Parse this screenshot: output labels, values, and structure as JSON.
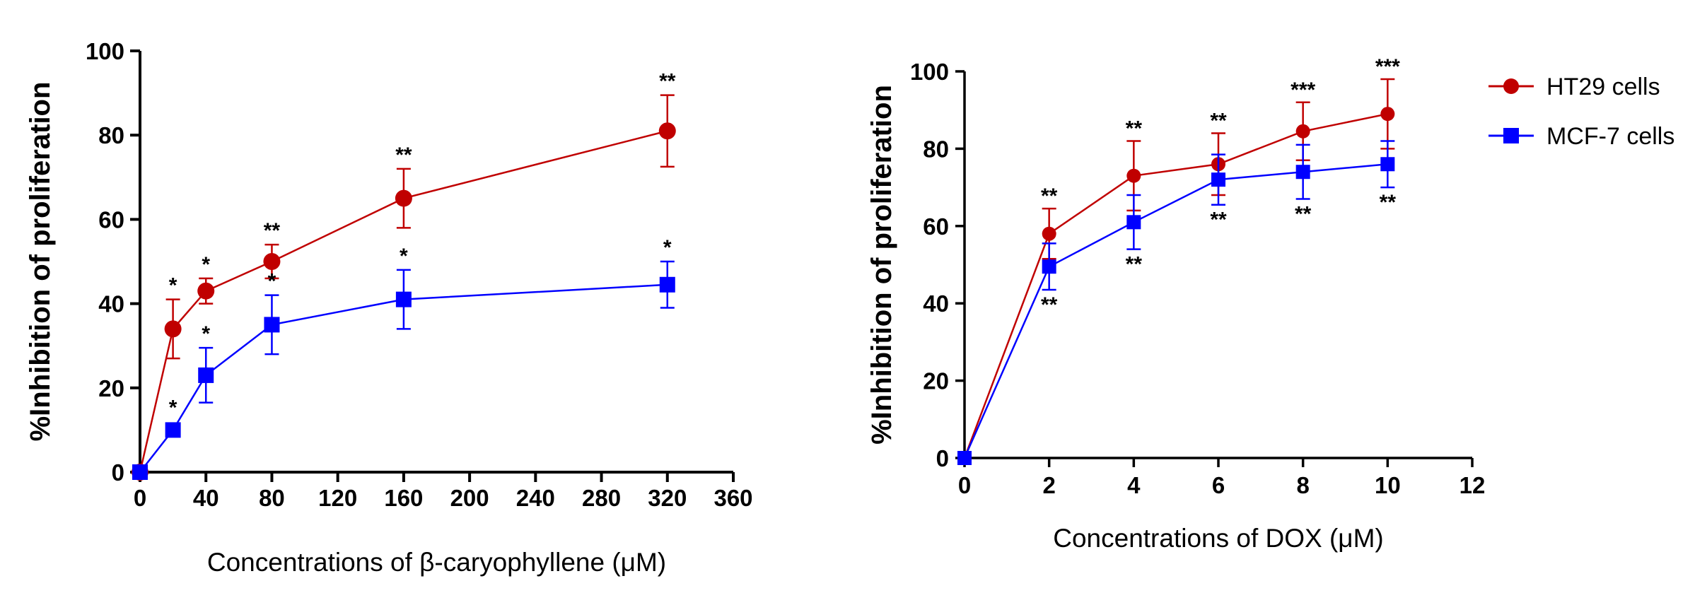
{
  "chart_data": [
    {
      "type": "line",
      "title": "",
      "xlabel": "Concentrations of  β-caryophyllene (μM)",
      "ylabel": "%Inhibition of proliferation",
      "xlim": [
        0,
        360
      ],
      "ylim": [
        0,
        100
      ],
      "xticks": [
        0,
        40,
        80,
        120,
        160,
        200,
        240,
        280,
        320,
        360
      ],
      "yticks": [
        0,
        20,
        40,
        60,
        80,
        100
      ],
      "x_tick_labels": [
        "0",
        "40",
        "80",
        "120",
        "160",
        "200",
        "240",
        "280",
        "320",
        "360"
      ],
      "y_tick_labels": [
        "0",
        "20",
        "40",
        "60",
        "80",
        "100"
      ],
      "legend": "none",
      "series": [
        {
          "name": "HT29 cells",
          "color": "#c00000",
          "marker": "circle",
          "x": [
            0,
            20,
            40,
            80,
            160,
            320
          ],
          "y": [
            0,
            34,
            43,
            50,
            65,
            81
          ],
          "err": [
            0,
            7,
            3,
            4,
            7,
            8.5
          ],
          "sig": [
            "",
            "*",
            "*",
            "**",
            "**",
            "**"
          ],
          "sig_pos": [
            "above",
            "above",
            "above",
            "above",
            "above",
            "above"
          ]
        },
        {
          "name": "MCF-7 cells",
          "color": "#0000ff",
          "marker": "square",
          "x": [
            0,
            20,
            40,
            80,
            160,
            320
          ],
          "y": [
            0,
            10,
            23,
            35,
            41,
            44.5
          ],
          "err": [
            0,
            0,
            6.5,
            7,
            7,
            5.5
          ],
          "sig": [
            "",
            "*",
            "*",
            "*",
            "*",
            "*"
          ],
          "sig_pos": [
            "above",
            "above",
            "above",
            "above",
            "above",
            "above"
          ]
        }
      ]
    },
    {
      "type": "line",
      "title": "",
      "xlabel": "Concentrations of  DOX (μM)",
      "ylabel": "%Inhibition of proliferation",
      "xlim": [
        0,
        12
      ],
      "ylim": [
        0,
        100
      ],
      "xticks": [
        0,
        2,
        4,
        6,
        8,
        10,
        12
      ],
      "yticks": [
        0,
        20,
        40,
        60,
        80,
        100
      ],
      "x_tick_labels": [
        "0",
        "2",
        "4",
        "6",
        "8",
        "10",
        "12"
      ],
      "y_tick_labels": [
        "0",
        "20",
        "40",
        "60",
        "80",
        "100"
      ],
      "legend": "top-right",
      "series": [
        {
          "name": "HT29 cells",
          "color": "#c00000",
          "marker": "circle",
          "x": [
            0,
            2,
            4,
            6,
            8,
            10
          ],
          "y": [
            0,
            58,
            73,
            76,
            84.5,
            89
          ],
          "err": [
            0,
            6.5,
            9,
            8,
            7.5,
            9
          ],
          "sig": [
            "",
            "**",
            "**",
            "**",
            "***",
            "***"
          ],
          "sig_pos": [
            "above",
            "above",
            "above",
            "above",
            "above",
            "above"
          ]
        },
        {
          "name": "MCF-7 cells",
          "color": "#0000ff",
          "marker": "square",
          "x": [
            0,
            2,
            4,
            6,
            8,
            10
          ],
          "y": [
            0,
            49.5,
            61,
            72,
            74,
            76
          ],
          "err": [
            0,
            6,
            7,
            6.5,
            7,
            6
          ],
          "sig": [
            "",
            "**",
            "**",
            "**",
            "**",
            "**"
          ],
          "sig_pos": [
            "below",
            "below",
            "below",
            "below",
            "below",
            "below"
          ]
        }
      ]
    }
  ]
}
